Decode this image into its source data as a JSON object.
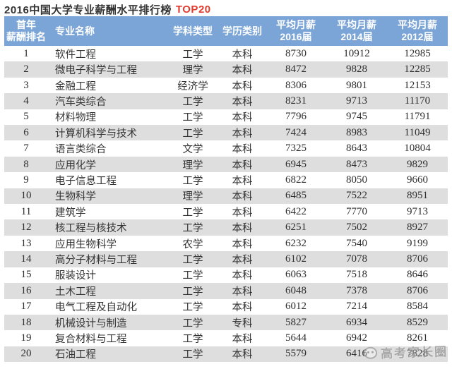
{
  "title": {
    "text": "2016中国大学专业薪酬水平排行榜",
    "highlight": "TOP20"
  },
  "colors": {
    "header_bg": "#7ba5d7",
    "stripe_gray": "#dedede",
    "accent_red": "#e23b2d"
  },
  "table": {
    "headers": [
      {
        "lines": [
          "首年",
          "薪酬排名"
        ]
      },
      {
        "lines": [
          "专业名称"
        ]
      },
      {
        "lines": [
          "学科类型"
        ]
      },
      {
        "lines": [
          "学历类别"
        ]
      },
      {
        "lines": [
          "平均月薪",
          "2016届"
        ]
      },
      {
        "lines": [
          "平均月薪",
          "2014届"
        ]
      },
      {
        "lines": [
          "平均月薪",
          "2012届"
        ]
      }
    ],
    "rows": [
      [
        1,
        "软件工程",
        "工学",
        "本科",
        8730,
        10912,
        12985
      ],
      [
        2,
        "微电子科学与工程",
        "理学",
        "本科",
        8472,
        9828,
        12285
      ],
      [
        3,
        "金融工程",
        "经济学",
        "本科",
        8306,
        9801,
        12153
      ],
      [
        4,
        "汽车类综合",
        "工学",
        "本科",
        8231,
        9713,
        11170
      ],
      [
        5,
        "材料物理",
        "工学",
        "本科",
        7796,
        9745,
        11791
      ],
      [
        6,
        "计算机科学与技术",
        "工学",
        "本科",
        7424,
        8983,
        11049
      ],
      [
        7,
        "语言类综合",
        "文学",
        "本科",
        7325,
        8643,
        10804
      ],
      [
        8,
        "应用化学",
        "理学",
        "本科",
        6945,
        8473,
        9829
      ],
      [
        9,
        "电子信息工程",
        "工学",
        "本科",
        6822,
        8050,
        9660
      ],
      [
        10,
        "生物科学",
        "理学",
        "本科",
        6485,
        7522,
        8951
      ],
      [
        11,
        "建筑学",
        "工学",
        "本科",
        6422,
        7770,
        9713
      ],
      [
        12,
        "核工程与核技术",
        "工学",
        "本科",
        6251,
        7502,
        8927
      ],
      [
        13,
        "应用生物科学",
        "农学",
        "本科",
        6232,
        7540,
        9199
      ],
      [
        14,
        "高分子材料与工程",
        "工学",
        "本科",
        6102,
        7078,
        8706
      ],
      [
        15,
        "服装设计",
        "工学",
        "本科",
        6063,
        7518,
        8646
      ],
      [
        16,
        "土木工程",
        "工学",
        "本科",
        6048,
        7378,
        8706
      ],
      [
        17,
        "电气工程及自动化",
        "工学",
        "本科",
        6012,
        7214,
        8584
      ],
      [
        18,
        "机械设计与制造",
        "工学",
        "专科",
        5827,
        6934,
        8529
      ],
      [
        19,
        "复合材料与工程",
        "工学",
        "本科",
        5644,
        6942,
        8261
      ],
      [
        20,
        "石油工程",
        "工学",
        "本科",
        5579,
        6416,
        7828
      ]
    ]
  },
  "watermark": {
    "text": "高考家长圈"
  },
  "chart_data": {
    "type": "table",
    "title": "2016中国大学专业薪酬水平排行榜 TOP20",
    "columns": [
      "首年薪酬排名",
      "专业名称",
      "学科类型",
      "学历类别",
      "平均月薪2016届",
      "平均月薪2014届",
      "平均月薪2012届"
    ],
    "rows": [
      [
        1,
        "软件工程",
        "工学",
        "本科",
        8730,
        10912,
        12985
      ],
      [
        2,
        "微电子科学与工程",
        "理学",
        "本科",
        8472,
        9828,
        12285
      ],
      [
        3,
        "金融工程",
        "经济学",
        "本科",
        8306,
        9801,
        12153
      ],
      [
        4,
        "汽车类综合",
        "工学",
        "本科",
        8231,
        9713,
        11170
      ],
      [
        5,
        "材料物理",
        "工学",
        "本科",
        7796,
        9745,
        11791
      ],
      [
        6,
        "计算机科学与技术",
        "工学",
        "本科",
        7424,
        8983,
        11049
      ],
      [
        7,
        "语言类综合",
        "文学",
        "本科",
        7325,
        8643,
        10804
      ],
      [
        8,
        "应用化学",
        "理学",
        "本科",
        6945,
        8473,
        9829
      ],
      [
        9,
        "电子信息工程",
        "工学",
        "本科",
        6822,
        8050,
        9660
      ],
      [
        10,
        "生物科学",
        "理学",
        "本科",
        6485,
        7522,
        8951
      ],
      [
        11,
        "建筑学",
        "工学",
        "本科",
        6422,
        7770,
        9713
      ],
      [
        12,
        "核工程与核技术",
        "工学",
        "本科",
        6251,
        7502,
        8927
      ],
      [
        13,
        "应用生物科学",
        "农学",
        "本科",
        6232,
        7540,
        9199
      ],
      [
        14,
        "高分子材料与工程",
        "工学",
        "本科",
        6102,
        7078,
        8706
      ],
      [
        15,
        "服装设计",
        "工学",
        "本科",
        6063,
        7518,
        8646
      ],
      [
        16,
        "土木工程",
        "工学",
        "本科",
        6048,
        7378,
        8706
      ],
      [
        17,
        "电气工程及自动化",
        "工学",
        "本科",
        6012,
        7214,
        8584
      ],
      [
        18,
        "机械设计与制造",
        "工学",
        "专科",
        5827,
        6934,
        8529
      ],
      [
        19,
        "复合材料与工程",
        "工学",
        "本科",
        5644,
        6942,
        8261
      ],
      [
        20,
        "石油工程",
        "工学",
        "本科",
        5579,
        6416,
        7828
      ]
    ]
  }
}
